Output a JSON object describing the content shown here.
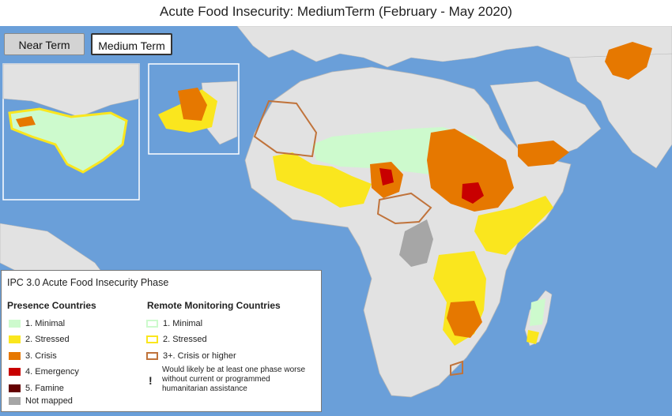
{
  "title": "Acute Food Insecurity: MediumTerm (February - May 2020)",
  "toggles": {
    "near_label": "Near Term",
    "medium_label": "Medium Term",
    "selected": "Medium Term"
  },
  "colors": {
    "ocean": "#6a9fd9",
    "land_unmonitored": "#e2e2e2",
    "minimal": "#cdfacd",
    "stressed": "#fae61e",
    "crisis": "#e67800",
    "emergency": "#c80000",
    "famine": "#640000",
    "not_mapped": "#a6a6a6",
    "remote_outline": "#c0733b"
  },
  "legend": {
    "title": "IPC 3.0 Acute Food Insecurity Phase",
    "presence_heading": "Presence Countries",
    "remote_heading": "Remote Monitoring Countries",
    "presence_items": [
      "1. Minimal",
      "2. Stressed",
      "3. Crisis",
      "4. Emergency",
      "5. Famine",
      "Not mapped"
    ],
    "remote_items": [
      "1. Minimal",
      "2. Stressed",
      "3+. Crisis or higher"
    ],
    "note_symbol": "!",
    "note_text": "Would likely be at least one phase worse without current or programmed humanitarian assistance"
  },
  "insets": [
    "central-america",
    "haiti"
  ]
}
